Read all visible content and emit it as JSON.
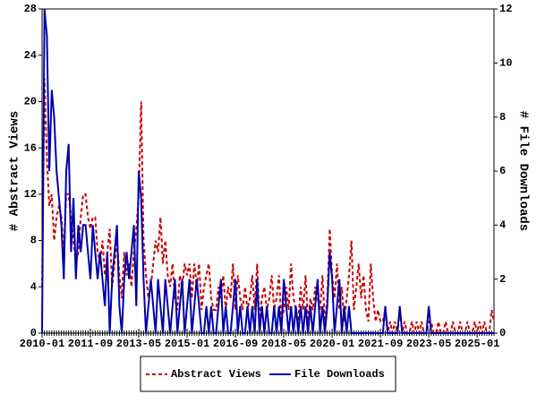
{
  "chart_data": {
    "type": "line",
    "y_label": "# Abstract Views",
    "y2_label": "# File Downloads",
    "x": [
      "2010-01",
      "2010-02",
      "2010-03",
      "2010-04",
      "2010-05",
      "2010-06",
      "2010-07",
      "2010-08",
      "2010-09",
      "2010-10",
      "2010-11",
      "2010-12",
      "2011-01",
      "2011-02",
      "2011-03",
      "2011-04",
      "2011-05",
      "2011-06",
      "2011-07",
      "2011-08",
      "2011-09",
      "2011-10",
      "2011-11",
      "2011-12",
      "2012-01",
      "2012-02",
      "2012-03",
      "2012-04",
      "2012-05",
      "2012-06",
      "2012-07",
      "2012-08",
      "2012-09",
      "2012-10",
      "2012-11",
      "2012-12",
      "2013-01",
      "2013-02",
      "2013-03",
      "2013-04",
      "2013-05",
      "2013-06",
      "2013-07",
      "2013-08",
      "2013-09",
      "2013-10",
      "2013-11",
      "2013-12",
      "2014-01",
      "2014-02",
      "2014-03",
      "2014-04",
      "2014-05",
      "2014-06",
      "2014-07",
      "2014-08",
      "2014-09",
      "2014-10",
      "2014-11",
      "2014-12",
      "2015-01",
      "2015-02",
      "2015-03",
      "2015-04",
      "2015-05",
      "2015-06",
      "2015-07",
      "2015-08",
      "2015-09",
      "2015-10",
      "2015-11",
      "2015-12",
      "2016-01",
      "2016-02",
      "2016-03",
      "2016-04",
      "2016-05",
      "2016-06",
      "2016-07",
      "2016-08",
      "2016-09",
      "2016-10",
      "2016-11",
      "2016-12",
      "2017-01",
      "2017-02",
      "2017-03",
      "2017-04",
      "2017-05",
      "2017-06",
      "2017-07",
      "2017-08",
      "2017-09",
      "2017-10",
      "2017-11",
      "2017-12",
      "2018-01",
      "2018-02",
      "2018-03",
      "2018-04",
      "2018-05",
      "2018-06",
      "2018-07",
      "2018-08",
      "2018-09",
      "2018-10",
      "2018-11",
      "2018-12",
      "2019-01",
      "2019-02",
      "2019-03",
      "2019-04",
      "2019-05",
      "2019-06",
      "2019-07",
      "2019-08",
      "2019-09",
      "2019-10",
      "2019-11",
      "2019-12",
      "2020-01",
      "2020-02",
      "2020-03",
      "2020-04",
      "2020-05",
      "2020-06",
      "2020-07",
      "2020-08",
      "2020-09",
      "2020-10",
      "2020-11",
      "2020-12",
      "2021-01",
      "2021-02",
      "2021-03",
      "2021-04",
      "2021-05",
      "2021-06",
      "2021-07",
      "2021-08",
      "2021-09",
      "2021-10",
      "2021-11",
      "2021-12",
      "2022-01",
      "2022-02",
      "2022-03",
      "2022-04",
      "2022-05",
      "2022-06",
      "2022-07",
      "2022-08",
      "2022-09",
      "2022-10",
      "2022-11",
      "2022-12",
      "2023-01",
      "2023-02",
      "2023-03",
      "2023-04",
      "2023-05",
      "2023-06",
      "2023-07",
      "2023-08",
      "2023-09",
      "2023-10",
      "2023-11",
      "2023-12",
      "2024-01",
      "2024-02",
      "2024-03",
      "2024-04",
      "2024-05",
      "2024-06",
      "2024-07",
      "2024-08",
      "2024-09",
      "2024-10",
      "2024-11",
      "2024-12",
      "2025-01",
      "2025-02",
      "2025-03",
      "2025-04",
      "2025-05",
      "2025-06",
      "2025-07",
      "2025-08"
    ],
    "xlim": [
      "2010-01",
      "2025-08"
    ],
    "xticks": [
      "2010-01",
      "2011-09",
      "2013-05",
      "2015-01",
      "2016-09",
      "2018-05",
      "2020-01",
      "2021-09",
      "2023-05",
      "2025-01"
    ],
    "ylim": [
      0,
      28
    ],
    "yticks": [
      0,
      4,
      8,
      12,
      16,
      20,
      24,
      28
    ],
    "y2lim": [
      0,
      12
    ],
    "y2ticks": [
      0,
      2,
      4,
      6,
      8,
      10,
      12
    ],
    "legend": "bottom",
    "series": [
      {
        "name": "Abstract Views",
        "color": "#cc0000",
        "dash": true,
        "values": [
          4,
          22,
          15,
          11,
          12,
          8,
          10,
          11,
          10,
          7,
          12,
          12,
          10,
          8,
          6,
          7,
          10,
          12,
          12,
          10,
          9,
          10,
          10,
          7,
          6,
          8,
          5,
          7,
          9,
          4,
          6,
          8,
          5,
          3,
          7,
          5,
          6,
          4,
          7,
          9,
          12,
          20,
          8,
          5,
          3,
          4,
          6,
          8,
          7,
          10,
          6,
          8,
          5,
          4,
          6,
          3,
          2,
          5,
          4,
          6,
          5,
          6,
          3,
          6,
          4,
          6,
          2,
          4,
          5,
          6,
          3,
          2,
          2,
          4,
          3,
          5,
          2,
          4,
          3,
          6,
          2,
          5,
          3,
          2,
          4,
          2,
          3,
          5,
          2,
          6,
          1,
          3,
          4,
          2,
          3,
          5,
          2,
          3,
          5,
          1,
          2,
          4,
          2,
          6,
          3,
          2,
          1,
          4,
          2,
          5,
          1,
          3,
          2,
          4,
          3,
          2,
          5,
          1,
          3,
          9,
          5,
          3,
          6,
          2,
          4,
          1,
          3,
          5,
          8,
          2,
          4,
          6,
          3,
          5,
          2,
          1,
          6,
          3,
          1,
          2,
          1,
          1,
          2,
          0,
          1,
          0,
          1,
          0,
          2,
          0,
          1,
          0,
          0,
          1,
          0,
          1,
          0,
          1,
          0,
          0,
          1,
          1,
          0,
          0,
          1,
          0,
          0,
          1,
          0,
          0,
          1,
          0,
          0,
          1,
          0,
          0,
          1,
          0,
          0,
          1,
          0,
          1,
          0,
          1,
          0,
          0,
          2,
          1
        ]
      },
      {
        "name": "File Downloads",
        "color": "#0000aa",
        "dash": false,
        "axis": "y2",
        "values": [
          0,
          12,
          11,
          6,
          9,
          8,
          6,
          5,
          4,
          2,
          6,
          7,
          3,
          5,
          2,
          4,
          3,
          4,
          4,
          3,
          2,
          4,
          3,
          2,
          3,
          2,
          1,
          3,
          0,
          2,
          3,
          4,
          1,
          0,
          2,
          3,
          2,
          3,
          4,
          1,
          6,
          5,
          2,
          0,
          1,
          2,
          1,
          0,
          2,
          1,
          0,
          2,
          1,
          0,
          1,
          2,
          0,
          1,
          2,
          0,
          1,
          2,
          0,
          1,
          2,
          1,
          0,
          0,
          1,
          0,
          1,
          0,
          0,
          1,
          2,
          0,
          1,
          0,
          0,
          1,
          2,
          0,
          1,
          0,
          0,
          1,
          0,
          1,
          0,
          2,
          0,
          1,
          0,
          1,
          0,
          0,
          1,
          0,
          1,
          0,
          2,
          1,
          0,
          1,
          0,
          1,
          0,
          1,
          0,
          1,
          0,
          1,
          0,
          1,
          2,
          0,
          1,
          0,
          1,
          3,
          2,
          0,
          1,
          2,
          0,
          1,
          0,
          1,
          0,
          0,
          0,
          0,
          0,
          0,
          0,
          0,
          0,
          0,
          0,
          0,
          0,
          0,
          1,
          0,
          0,
          0,
          0,
          0,
          1,
          0,
          0,
          0,
          0,
          0,
          0,
          0,
          0,
          0,
          0,
          0,
          1,
          0,
          0,
          0,
          0,
          0,
          0,
          0,
          0,
          0,
          0,
          0,
          0,
          0,
          0,
          0,
          0,
          0,
          0,
          0,
          0,
          0,
          0,
          0,
          0,
          0,
          0,
          0
        ]
      }
    ]
  }
}
